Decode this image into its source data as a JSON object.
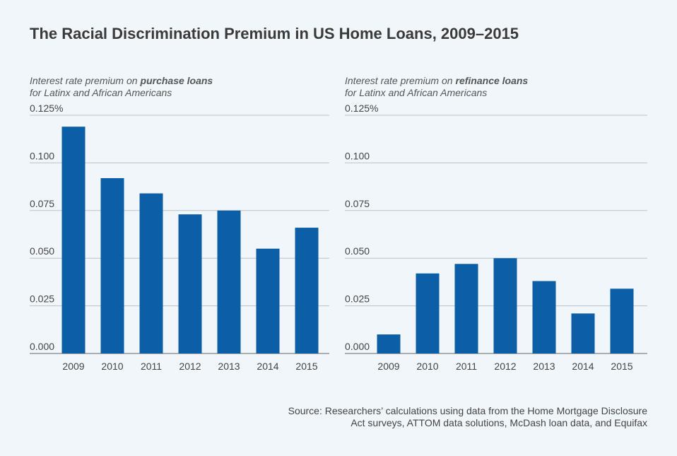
{
  "title": "The Racial Discrimination Premium in US Home Loans, 2009–2015",
  "source": [
    "Source: Researchers’ calculations using data from the Home Mortgage Disclosure",
    "Act surveys, ATTOM data solutions, McDash loan data, and Equifax"
  ],
  "chart_data": [
    {
      "type": "bar",
      "subtitle_lead": "Interest rate premium on",
      "subtitle_emphasis": "purchase loans",
      "subtitle_line2": "for Latinx and African Americans",
      "categories": [
        "2009",
        "2010",
        "2011",
        "2012",
        "2013",
        "2014",
        "2015"
      ],
      "values": [
        0.119,
        0.092,
        0.084,
        0.073,
        0.075,
        0.055,
        0.066
      ],
      "color": "#0c5ea6",
      "ylim": [
        0,
        0.125
      ],
      "yticks": [
        {
          "value": 0,
          "label": "0.000"
        },
        0.025,
        {
          "value": 0.05,
          "label": "0.050"
        },
        0.075,
        {
          "value": 0.1,
          "label": "0.100"
        },
        {
          "value": 0.125,
          "label": "0.125%"
        }
      ],
      "grid": true
    },
    {
      "type": "bar",
      "subtitle_lead": "Interest rate premium on",
      "subtitle_emphasis": "refinance loans",
      "subtitle_line2": "for Latinx and African Americans",
      "categories": [
        "2009",
        "2010",
        "2011",
        "2012",
        "2013",
        "2014",
        "2015"
      ],
      "values": [
        0.01,
        0.042,
        0.047,
        0.05,
        0.038,
        0.021,
        0.034
      ],
      "color": "#0c5ea6",
      "ylim": [
        0,
        0.125
      ],
      "yticks": [
        {
          "value": 0,
          "label": "0.000"
        },
        0.025,
        {
          "value": 0.05,
          "label": "0.050"
        },
        0.075,
        {
          "value": 0.1,
          "label": "0.100"
        },
        {
          "value": 0.125,
          "label": "0.125%"
        }
      ],
      "grid": true
    }
  ]
}
